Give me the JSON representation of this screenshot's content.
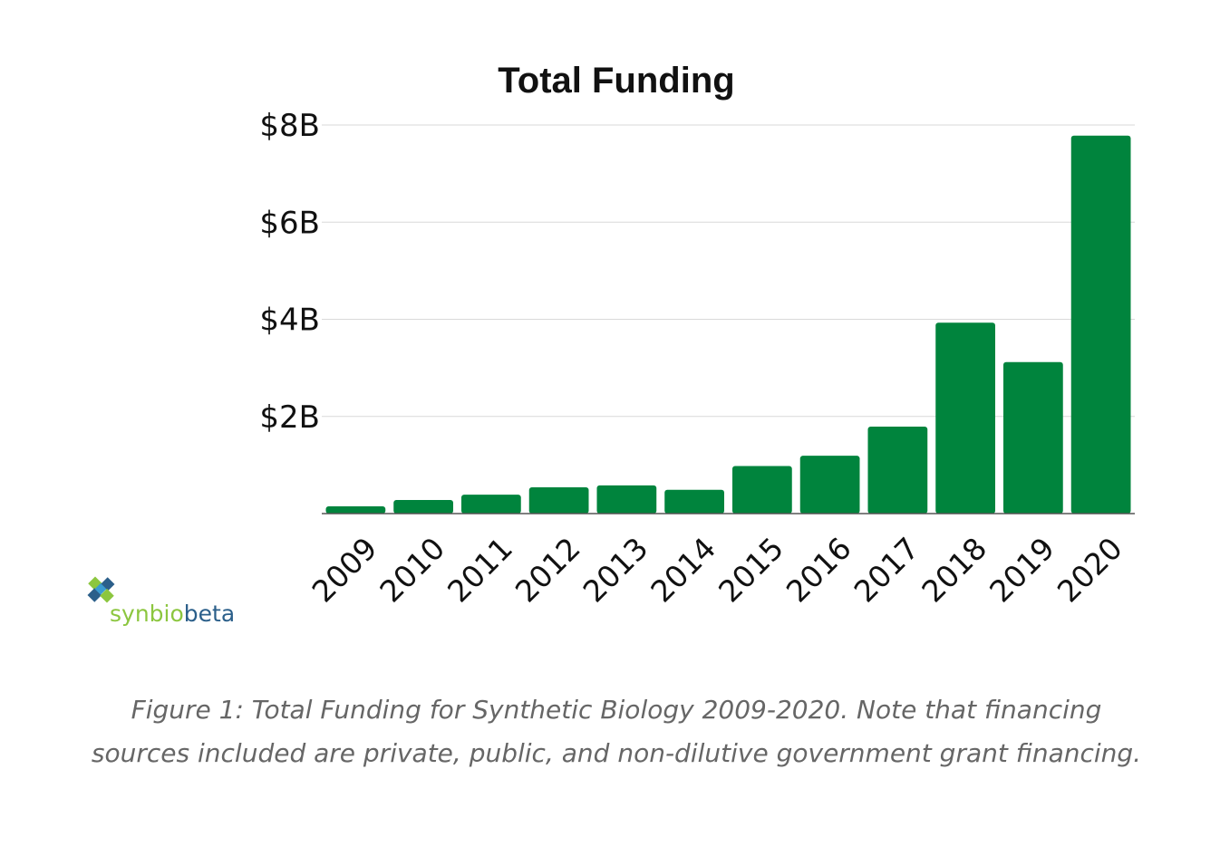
{
  "chart_data": {
    "type": "bar",
    "title": "Total Funding",
    "xlabel": "",
    "ylabel": "",
    "categories": [
      "2009",
      "2010",
      "2011",
      "2012",
      "2013",
      "2014",
      "2015",
      "2016",
      "2017",
      "2018",
      "2019",
      "2020"
    ],
    "values": [
      0.15,
      0.28,
      0.39,
      0.54,
      0.58,
      0.49,
      0.98,
      1.19,
      1.79,
      3.93,
      3.12,
      7.78
    ],
    "unit": "B",
    "ylim": [
      0,
      8
    ],
    "y_ticks": [
      {
        "value": 2,
        "label": "$2B"
      },
      {
        "value": 4,
        "label": "$4B"
      },
      {
        "value": 6,
        "label": "$6B"
      },
      {
        "value": 8,
        "label": "$8B"
      }
    ],
    "bar_color": "#00843d",
    "grid": true,
    "legend": "none"
  },
  "logo": {
    "text_a": "synbio",
    "text_b": "beta",
    "color_a": "#8cc63f",
    "color_b": "#2b5f8a"
  },
  "caption": "Figure 1: Total Funding for Synthetic Biology 2009-2020. Note that financing sources included are private, public, and non-dilutive government grant financing."
}
